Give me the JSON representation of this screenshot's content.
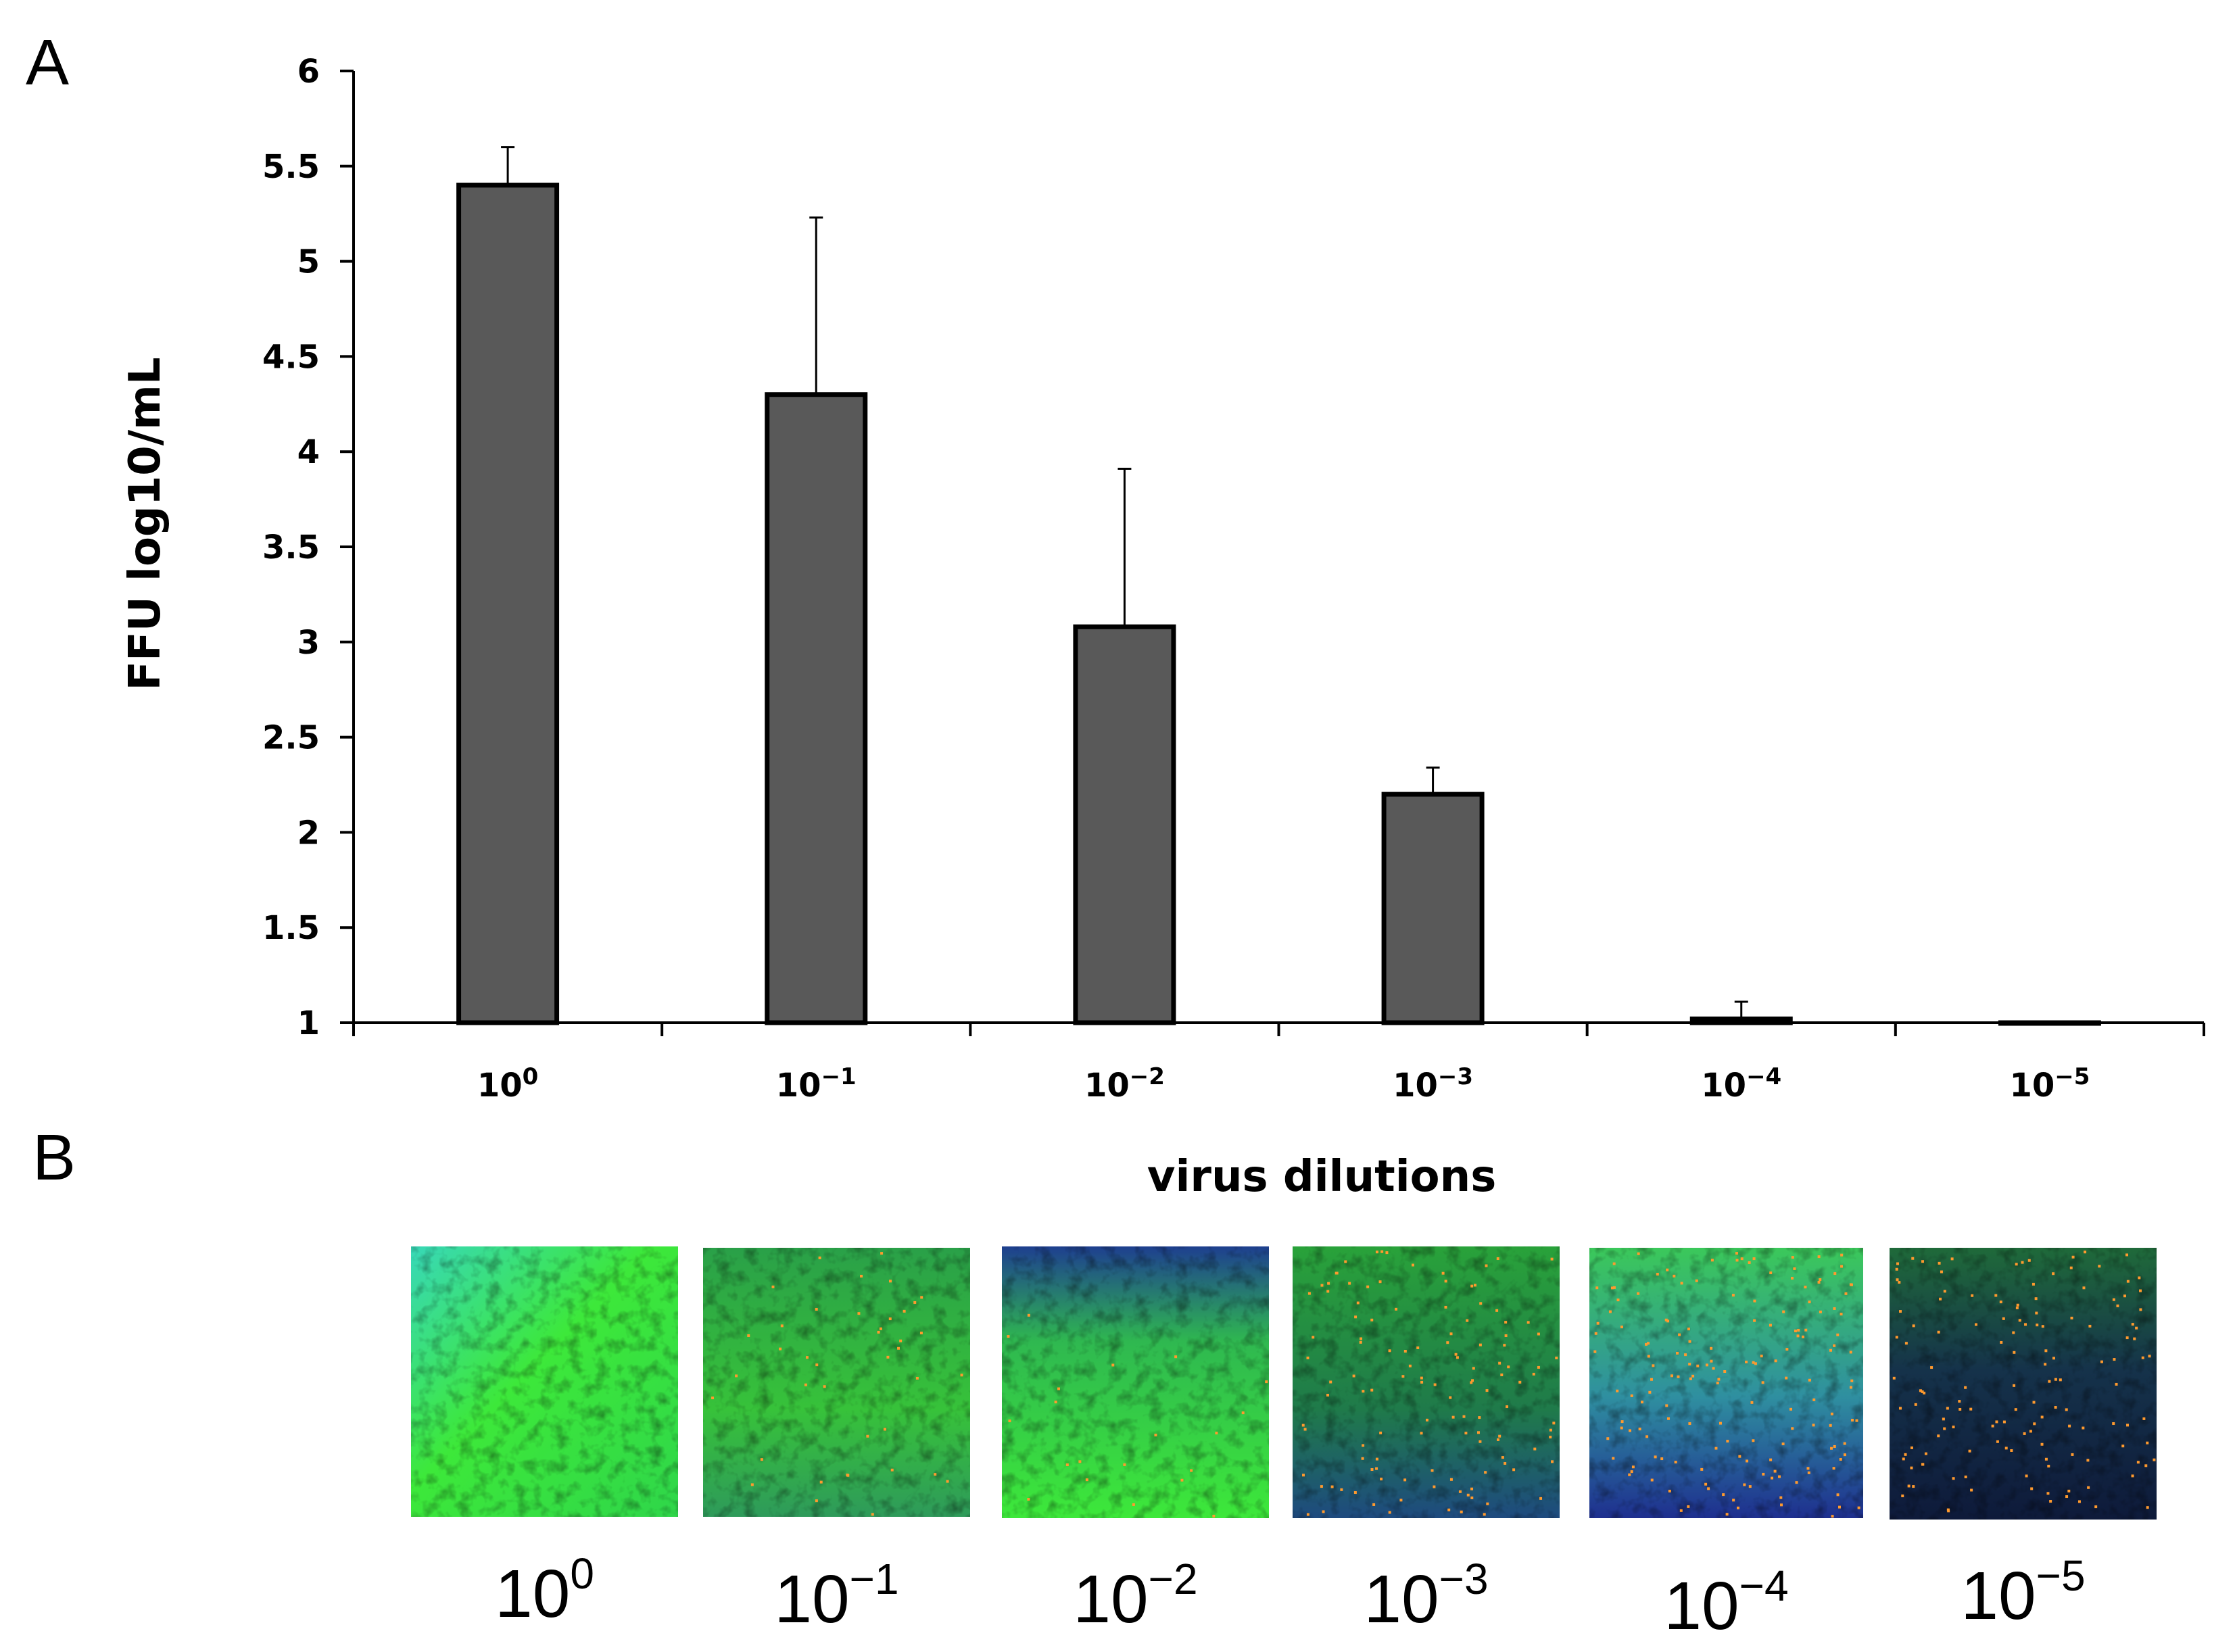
{
  "panels": {
    "a_label": "A",
    "b_label": "B"
  },
  "chart_data": {
    "type": "bar",
    "title": "",
    "xlabel": "virus dilutions",
    "ylabel": "FFU log10/mL",
    "ylim": [
      1,
      6
    ],
    "yticks": [
      "1",
      "1.5",
      "2",
      "2.5",
      "3",
      "3.5",
      "4",
      "4.5",
      "5",
      "5.5",
      "6"
    ],
    "ytick_values": [
      1,
      1.5,
      2,
      2.5,
      3,
      3.5,
      4,
      4.5,
      5,
      5.5,
      6
    ],
    "categories": [
      {
        "base": "10",
        "exp": "0"
      },
      {
        "base": "10",
        "exp": "−1"
      },
      {
        "base": "10",
        "exp": "−2"
      },
      {
        "base": "10",
        "exp": "−3"
      },
      {
        "base": "10",
        "exp": "−4"
      },
      {
        "base": "10",
        "exp": "−5"
      }
    ],
    "values": [
      5.4,
      4.3,
      3.08,
      2.2,
      1.02,
      1.0
    ],
    "error_upper": [
      0.2,
      0.93,
      0.83,
      0.14,
      0.09,
      0.0
    ],
    "bar_color": "#595959",
    "grid": false
  },
  "images": {
    "labels": [
      {
        "base": "10",
        "exp": "0"
      },
      {
        "base": "10",
        "exp": "−1"
      },
      {
        "base": "10",
        "exp": "−2"
      },
      {
        "base": "10",
        "exp": "−3"
      },
      {
        "base": "10",
        "exp": "−4"
      },
      {
        "base": "10",
        "exp": "−5"
      }
    ],
    "colors": {
      "bright_green": "#3de83a",
      "dark_green": "#1f7a3a",
      "blue": "#1e3f8f",
      "navy": "#0e1a3a",
      "cyan": "#38d8b8",
      "orange_dot": "#ff9a2e"
    }
  }
}
